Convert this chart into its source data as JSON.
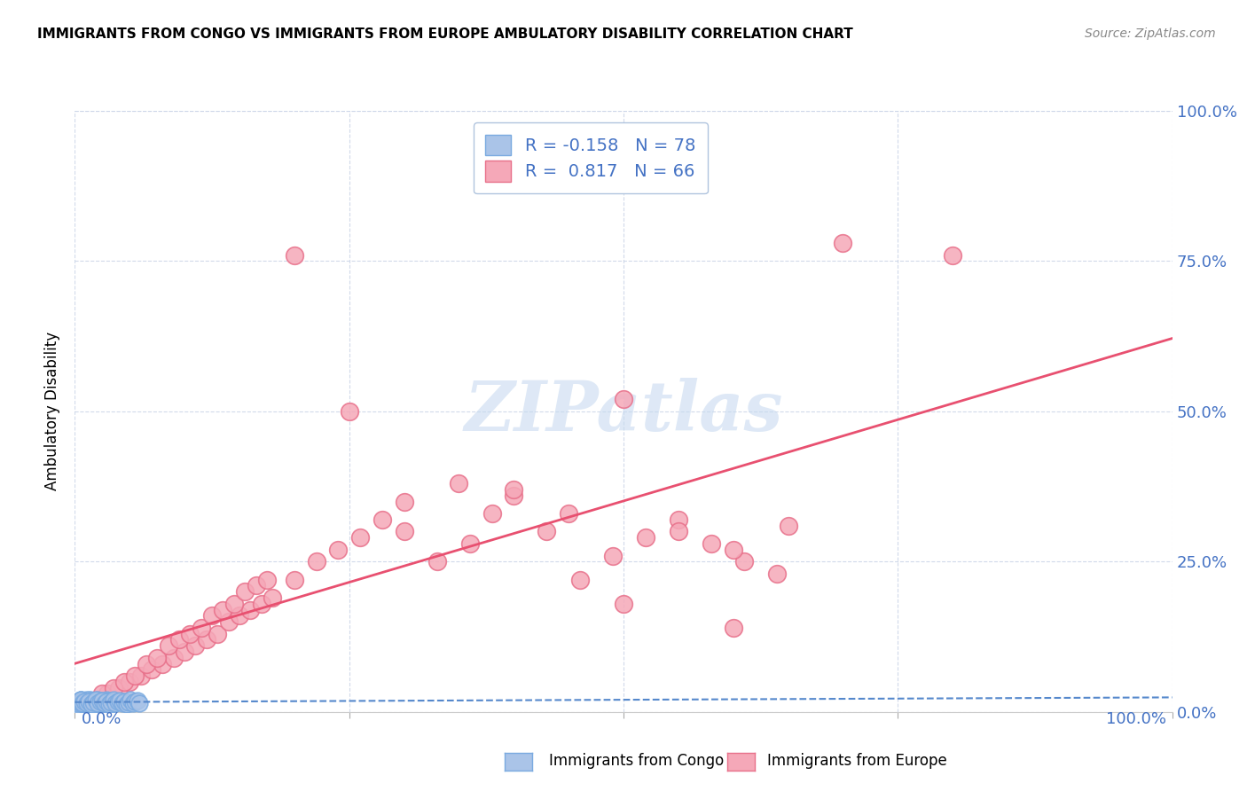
{
  "title": "IMMIGRANTS FROM CONGO VS IMMIGRANTS FROM EUROPE AMBULATORY DISABILITY CORRELATION CHART",
  "source": "Source: ZipAtlas.com",
  "ylabel": "Ambulatory Disability",
  "legend_congo": "Immigrants from Congo",
  "legend_europe": "Immigrants from Europe",
  "R_congo": -0.158,
  "N_congo": 78,
  "R_europe": 0.817,
  "N_europe": 66,
  "background_color": "#ffffff",
  "plot_bg_color": "#ffffff",
  "grid_color": "#ccd6e8",
  "congo_color": "#aac4e8",
  "europe_color": "#f5a8b8",
  "congo_edge_color": "#7aaae0",
  "europe_edge_color": "#e8708a",
  "congo_line_color": "#5588cc",
  "europe_line_color": "#e85070",
  "tick_color": "#4472c4",
  "watermark_color": "#c8daf0",
  "europe_x": [
    1.0,
    2.0,
    3.0,
    4.0,
    5.0,
    6.0,
    7.0,
    8.0,
    9.0,
    10.0,
    11.0,
    12.0,
    13.0,
    14.0,
    15.0,
    16.0,
    17.0,
    18.0,
    2.5,
    3.5,
    4.5,
    5.5,
    6.5,
    7.5,
    8.5,
    9.5,
    10.5,
    11.5,
    12.5,
    13.5,
    14.5,
    15.5,
    16.5,
    17.5,
    20.0,
    22.0,
    24.0,
    26.0,
    28.0,
    30.0,
    33.0,
    36.0,
    38.0,
    40.0,
    43.0,
    46.0,
    49.0,
    52.0,
    55.0,
    58.0,
    61.0,
    64.0,
    35.0,
    45.0,
    50.0,
    55.0,
    60.0,
    65.0,
    70.0,
    80.0,
    20.0,
    25.0,
    30.0,
    40.0,
    50.0,
    60.0
  ],
  "europe_y": [
    1.5,
    2.0,
    3.0,
    4.0,
    5.0,
    6.0,
    7.0,
    8.0,
    9.0,
    10.0,
    11.0,
    12.0,
    13.0,
    15.0,
    16.0,
    17.0,
    18.0,
    19.0,
    3.0,
    4.0,
    5.0,
    6.0,
    8.0,
    9.0,
    11.0,
    12.0,
    13.0,
    14.0,
    16.0,
    17.0,
    18.0,
    20.0,
    21.0,
    22.0,
    22.0,
    25.0,
    27.0,
    29.0,
    32.0,
    35.0,
    25.0,
    28.0,
    33.0,
    36.0,
    30.0,
    22.0,
    26.0,
    29.0,
    32.0,
    28.0,
    25.0,
    23.0,
    38.0,
    33.0,
    52.0,
    30.0,
    27.0,
    31.0,
    78.0,
    76.0,
    76.0,
    50.0,
    30.0,
    37.0,
    18.0,
    14.0
  ],
  "congo_x": [
    0.2,
    0.3,
    0.4,
    0.5,
    0.6,
    0.7,
    0.8,
    0.9,
    1.0,
    1.1,
    1.2,
    1.3,
    1.4,
    1.5,
    0.1,
    0.15,
    0.25,
    0.35,
    0.45,
    0.55,
    0.65,
    0.75,
    0.85,
    0.95,
    1.05,
    1.15,
    1.25,
    1.35,
    1.45,
    1.55,
    1.65,
    1.75,
    1.85,
    1.95,
    2.05,
    2.15,
    2.25,
    2.35,
    2.45,
    2.55,
    2.65,
    2.75,
    2.85,
    2.95,
    3.05,
    3.15,
    3.25,
    3.35,
    3.45,
    3.55,
    0.5,
    0.7,
    0.9,
    1.1,
    1.3,
    1.5,
    1.7,
    1.9,
    2.1,
    2.3,
    2.5,
    2.7,
    2.9,
    3.1,
    3.3,
    3.5,
    3.7,
    3.9,
    4.1,
    4.3,
    4.5,
    4.7,
    4.9,
    5.1,
    5.3,
    5.5,
    5.7,
    5.9
  ],
  "congo_y": [
    1.5,
    1.8,
    1.2,
    2.0,
    1.6,
    1.9,
    1.4,
    1.7,
    2.1,
    1.3,
    1.8,
    1.5,
    2.0,
    1.6,
    1.0,
    1.2,
    1.4,
    1.6,
    1.8,
    2.0,
    1.7,
    1.5,
    1.9,
    1.3,
    1.8,
    1.6,
    2.1,
    1.4,
    1.7,
    1.9,
    1.5,
    1.8,
    1.3,
    1.6,
    2.0,
    1.4,
    1.7,
    1.9,
    1.5,
    1.8,
    1.3,
    1.6,
    2.0,
    1.4,
    1.7,
    1.9,
    1.5,
    1.8,
    1.3,
    1.6,
    2.0,
    1.4,
    1.7,
    1.5,
    1.8,
    1.3,
    1.6,
    2.0,
    1.4,
    1.7,
    1.9,
    1.5,
    1.8,
    1.3,
    1.6,
    2.0,
    1.4,
    1.7,
    1.9,
    1.5,
    1.8,
    1.3,
    1.6,
    2.0,
    1.4,
    1.7,
    1.9,
    1.5
  ]
}
